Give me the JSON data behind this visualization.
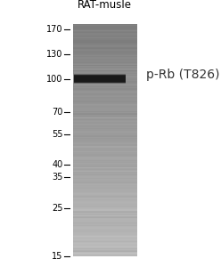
{
  "title": "RAT-musle",
  "annotation": "p-Rb (T826)",
  "mw_markers": [
    170,
    130,
    100,
    70,
    55,
    40,
    35,
    25,
    15
  ],
  "band_mw": 100,
  "log_min": 1.176,
  "log_max": 2.255,
  "background_color": "#ffffff",
  "lane_color_top": "#808080",
  "lane_color_bottom": "#b8b8b8",
  "band_color": "#111111",
  "marker_color": "#000000",
  "title_color": "#000000",
  "annotation_color": "#333333",
  "title_fontsize": 8.5,
  "marker_fontsize": 7,
  "annotation_fontsize": 10,
  "fig_width": 2.48,
  "fig_height": 3.0,
  "dpi": 100
}
